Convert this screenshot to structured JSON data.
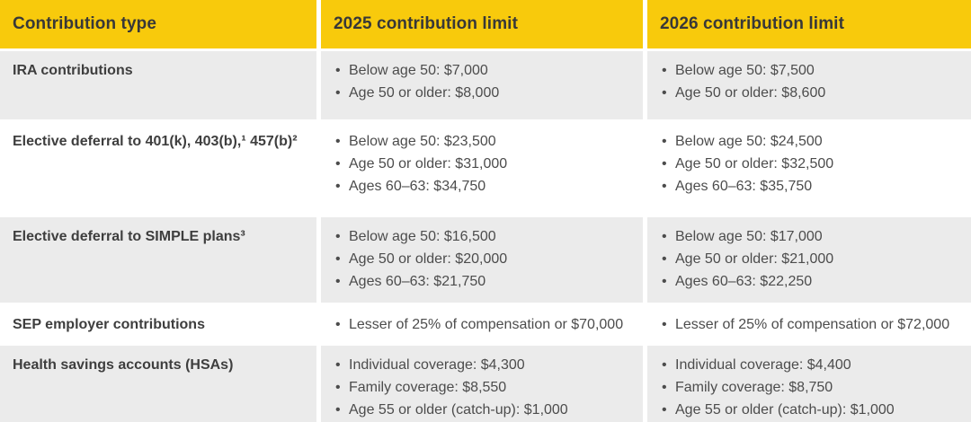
{
  "colors": {
    "header_bg": "#F8CA0C",
    "row_alt_bg": "#EBEBEB",
    "header_text": "#383838",
    "body_text": "#4C4C4C"
  },
  "chart_data": {
    "type": "table",
    "columns": [
      "Contribution type",
      "2025 contribution limit",
      "2026 contribution limit"
    ],
    "rows": [
      {
        "contribution_type": "IRA contributions",
        "limit_2025": [
          "Below age 50: $7,000",
          "Age 50 or older: $8,000"
        ],
        "limit_2026": [
          "Below age 50: $7,500",
          "Age 50 or older: $8,600"
        ]
      },
      {
        "contribution_type": "Elective deferral to 401(k), 403(b),¹ 457(b)²",
        "limit_2025": [
          "Below age 50: $23,500",
          "Age 50 or older: $31,000",
          "Ages 60–63: $34,750"
        ],
        "limit_2026": [
          "Below age 50: $24,500",
          "Age 50 or older: $32,500",
          "Ages 60–63: $35,750"
        ]
      },
      {
        "contribution_type": "Elective deferral to SIMPLE plans³",
        "limit_2025": [
          "Below age 50: $16,500",
          "Age 50 or older: $20,000",
          "Ages 60–63: $21,750"
        ],
        "limit_2026": [
          "Below age 50: $17,000",
          "Age 50 or older: $21,000",
          "Ages 60–63: $22,250"
        ]
      },
      {
        "contribution_type": "SEP employer contributions",
        "limit_2025": [
          "Lesser of 25% of compensation or $70,000"
        ],
        "limit_2026": [
          "Lesser of 25% of compensation or $72,000"
        ]
      },
      {
        "contribution_type": "Health savings accounts (HSAs)",
        "limit_2025": [
          "Individual coverage: $4,300",
          "Family coverage: $8,550",
          "Age 55 or older (catch-up): $1,000"
        ],
        "limit_2026": [
          "Individual coverage: $4,400",
          "Family coverage: $8,750",
          "Age 55 or older (catch-up): $1,000"
        ]
      }
    ]
  }
}
